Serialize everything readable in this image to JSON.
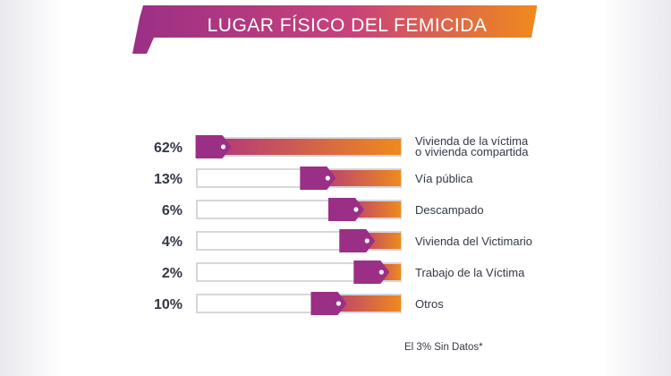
{
  "title": "LUGAR FÍSICO DEL FEMICIDA",
  "note": "El 3% Sin Datos*",
  "colors": {
    "purple": "#9b2f86",
    "magenta": "#b0357f",
    "orange": "#f08a1c",
    "outline": "#d6d6dc",
    "text": "#333844"
  },
  "chart_data": {
    "type": "bar",
    "title": "LUGAR FÍSICO DEL FEMICIDA",
    "xlabel": "",
    "ylabel": "",
    "ylim": [
      0,
      100
    ],
    "categories": [
      "Vivienda de la víctima o vivienda compartida",
      "Vía pública",
      "Descampado",
      "Vivienda del Victimario",
      "Trabajo de la Víctima",
      "Otros"
    ],
    "category_lines": [
      [
        "Vivienda de la víctima",
        "o vivienda compartida"
      ],
      [
        "Vía pública"
      ],
      [
        "Descampado"
      ],
      [
        "Vivienda del Victimario"
      ],
      [
        "Trabajo de la Víctima"
      ],
      [
        "Otros"
      ]
    ],
    "values": [
      62,
      13,
      6,
      4,
      2,
      10
    ],
    "value_labels": [
      "62%",
      "13%",
      "6%",
      "4%",
      "2%",
      "10%"
    ]
  }
}
